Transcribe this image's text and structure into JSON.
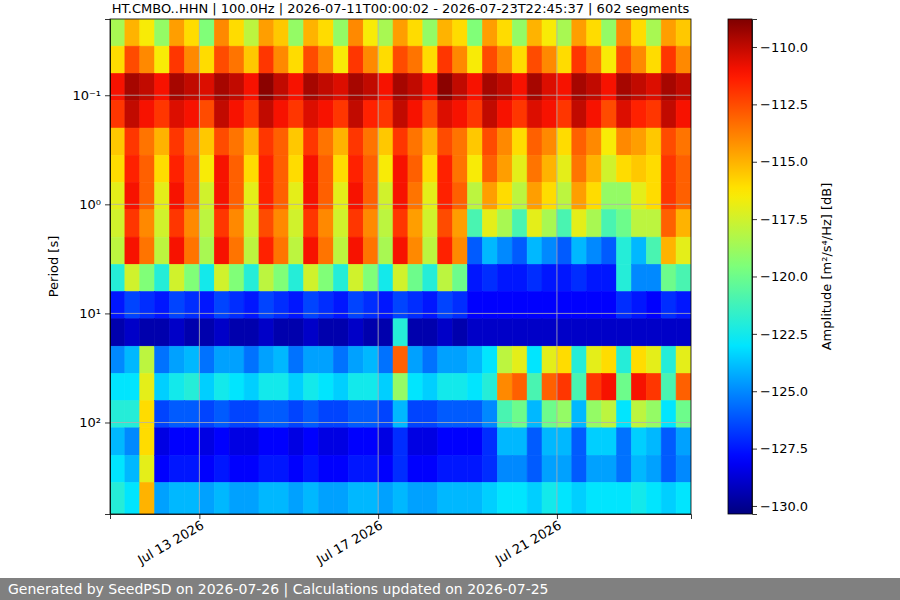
{
  "chart_data": {
    "type": "heatmap",
    "title": "HT.CMBO..HHN | 100.0Hz | 2026-07-11T00:00:02 - 2026-07-23T22:45:37 | 602 segments",
    "ylabel": "Period [s]",
    "footer": "Generated by SeedPSD on 2026-07-26 | Calculations updated on 2026-07-25",
    "log": "y",
    "grid": true,
    "xlim": [
      "2026-07-11T00:00",
      "2026-07-24T00:00"
    ],
    "xticks": [
      {
        "value": "2026-07-13T00:00",
        "label": "Jul 13 2026"
      },
      {
        "value": "2026-07-17T00:00",
        "label": "Jul 17 2026"
      },
      {
        "value": "2026-07-21T00:00",
        "label": "Jul 21 2026"
      }
    ],
    "ylim": [
      0.02,
      690
    ],
    "yticks": [
      {
        "value": 0.1,
        "label": "10⁻¹"
      },
      {
        "value": 1,
        "label": "10⁰"
      },
      {
        "value": 10,
        "label": "10¹"
      },
      {
        "value": 100,
        "label": "10²"
      }
    ],
    "x_bins": [
      "2026-07-11T00:00",
      "2026-07-11T08:00",
      "2026-07-11T16:00",
      "2026-07-12T00:00",
      "2026-07-12T08:00",
      "2026-07-12T16:00",
      "2026-07-13T00:00",
      "2026-07-13T08:00",
      "2026-07-13T16:00",
      "2026-07-14T00:00",
      "2026-07-14T08:00",
      "2026-07-14T16:00",
      "2026-07-15T00:00",
      "2026-07-15T08:00",
      "2026-07-15T16:00",
      "2026-07-16T00:00",
      "2026-07-16T08:00",
      "2026-07-16T16:00",
      "2026-07-17T00:00",
      "2026-07-17T08:00",
      "2026-07-17T16:00",
      "2026-07-18T00:00",
      "2026-07-18T08:00",
      "2026-07-18T16:00",
      "2026-07-19T00:00",
      "2026-07-19T08:00",
      "2026-07-19T16:00",
      "2026-07-20T00:00",
      "2026-07-20T08:00",
      "2026-07-20T16:00",
      "2026-07-21T00:00",
      "2026-07-21T08:00",
      "2026-07-21T16:00",
      "2026-07-22T00:00",
      "2026-07-22T08:00",
      "2026-07-22T16:00",
      "2026-07-23T00:00",
      "2026-07-23T08:00",
      "2026-07-23T16:00",
      "2026-07-24T00:00"
    ],
    "y_bins": [
      0.02,
      0.0355,
      0.0631,
      0.112,
      0.2,
      0.355,
      0.631,
      1.12,
      2,
      3.55,
      6.31,
      11.2,
      20,
      35.5,
      63.1,
      112,
      200,
      355,
      690
    ],
    "values": [
      [
        -118.5,
        -115,
        -116.5,
        -119,
        -114.5,
        -116,
        -119.5,
        -114,
        -116,
        -118,
        -114.5,
        -115.5,
        -119,
        -115,
        -116,
        -119,
        -114,
        -116.5,
        -118.5,
        -114.5,
        -116,
        -119,
        -115,
        -116,
        -119.5,
        -114.5,
        -116,
        -119,
        -115,
        -116.5,
        -118.5,
        -114.5,
        -116,
        -119,
        -114,
        -116,
        -118.5,
        -114.5,
        -115.5
      ],
      [
        -116,
        -112.5,
        -114,
        -116.5,
        -112,
        -114,
        -116,
        -112.5,
        -113.5,
        -115.5,
        -112,
        -114,
        -116,
        -112.5,
        -114,
        -116.5,
        -112,
        -114,
        -116,
        -112.5,
        -113.5,
        -116,
        -112,
        -114,
        -116.5,
        -112.5,
        -114,
        -116,
        -112.5,
        -114,
        -116,
        -112,
        -113.5,
        -116.5,
        -112.5,
        -114,
        -116,
        -112,
        -114
      ],
      [
        -111,
        -109.5,
        -110,
        -111,
        -109.5,
        -110,
        -110.5,
        -109.5,
        -110,
        -111,
        -109,
        -110,
        -111,
        -109.5,
        -110,
        -110.5,
        -109.5,
        -110,
        -111,
        -109.5,
        -110,
        -111,
        -109,
        -110,
        -111,
        -109.5,
        -110,
        -111,
        -109.5,
        -110.5,
        -111,
        -109.5,
        -110,
        -111,
        -109.5,
        -110,
        -110.5,
        -109.5,
        -110
      ],
      [
        -112,
        -110,
        -111,
        -112,
        -110.5,
        -111,
        -112.5,
        -110,
        -111,
        -112,
        -110,
        -111,
        -112,
        -110.5,
        -111,
        -112,
        -110,
        -111.5,
        -112,
        -110,
        -111,
        -112.5,
        -110.5,
        -111,
        -112,
        -110,
        -111,
        -112,
        -110.5,
        -111,
        -112,
        -110,
        -111,
        -112.5,
        -110.5,
        -111.5,
        -112,
        -110,
        -111
      ],
      [
        -115.5,
        -112,
        -113.5,
        -115,
        -112,
        -113.5,
        -115.5,
        -112.5,
        -113.5,
        -115,
        -112,
        -113,
        -115.5,
        -112,
        -113.5,
        -115,
        -112,
        -113.5,
        -115.5,
        -112,
        -113.5,
        -115,
        -112.5,
        -113.5,
        -115.5,
        -112.5,
        -114,
        -116,
        -113,
        -114,
        -116,
        -113,
        -114,
        -116.5,
        -114,
        -114.5,
        -115.5,
        -112.5,
        -113.5
      ],
      [
        -116,
        -111.5,
        -113,
        -116,
        -111.5,
        -113,
        -116.5,
        -111,
        -113,
        -116,
        -111.5,
        -113,
        -116,
        -111,
        -113,
        -116,
        -111.5,
        -113,
        -116.5,
        -111,
        -113,
        -116,
        -111.5,
        -113.5,
        -116.5,
        -113,
        -114.5,
        -117,
        -113.5,
        -115,
        -117,
        -113.5,
        -115,
        -117.5,
        -116,
        -115.5,
        -116,
        -112,
        -113
      ],
      [
        -117,
        -111,
        -113,
        -117,
        -111,
        -113,
        -117.5,
        -111,
        -113,
        -117,
        -111.5,
        -113,
        -117,
        -111,
        -113,
        -117,
        -111,
        -113,
        -117.5,
        -111,
        -113.5,
        -117,
        -111.5,
        -113,
        -118,
        -114.5,
        -116,
        -118,
        -114.5,
        -116,
        -118,
        -114.5,
        -116,
        -119,
        -119,
        -117,
        -116,
        -112,
        -113
      ],
      [
        -117.5,
        -112,
        -114,
        -117.5,
        -112,
        -114,
        -118,
        -112,
        -114,
        -117.5,
        -112.5,
        -114,
        -117.5,
        -112,
        -114,
        -117.5,
        -112,
        -114,
        -118,
        -112,
        -114.5,
        -117.5,
        -112.5,
        -114.5,
        -121,
        -117,
        -118.5,
        -121,
        -117,
        -118.5,
        -121,
        -117,
        -118.5,
        -121,
        -120,
        -118,
        -118,
        -113,
        -115
      ],
      [
        -118,
        -111,
        -113.5,
        -118,
        -111,
        -113.5,
        -118.5,
        -111,
        -113.5,
        -118,
        -111.5,
        -113.5,
        -118,
        -111,
        -113.5,
        -118,
        -111,
        -113.5,
        -118.5,
        -111,
        -114,
        -118,
        -111.5,
        -114,
        -126,
        -124,
        -125,
        -126,
        -124,
        -125,
        -126,
        -124,
        -125,
        -126,
        -122,
        -124,
        -121,
        -115,
        -117
      ],
      [
        -122,
        -117.5,
        -119.5,
        -122,
        -117.5,
        -119.5,
        -122.5,
        -117.5,
        -119.5,
        -122,
        -118,
        -119.5,
        -122,
        -117.5,
        -119.5,
        -122,
        -117.5,
        -119.5,
        -122.5,
        -117.5,
        -120,
        -122,
        -118,
        -120,
        -127.5,
        -127,
        -127.5,
        -127.5,
        -127,
        -127.5,
        -127.5,
        -127,
        -127.5,
        -127.5,
        -122,
        -125,
        -125,
        -120,
        -121
      ],
      [
        -127.5,
        -126.5,
        -127,
        -127.5,
        -126.5,
        -127,
        -127.5,
        -126.5,
        -127,
        -127.5,
        -126.5,
        -127,
        -127.5,
        -126.5,
        -127,
        -127.5,
        -126.5,
        -127,
        -127.5,
        -126.5,
        -127,
        -127.5,
        -126.5,
        -127,
        -128,
        -128,
        -128,
        -128,
        -128,
        -128,
        -128,
        -128,
        -128,
        -128,
        -127,
        -127.5,
        -128,
        -127,
        -127.5
      ],
      [
        -129.5,
        -129,
        -129.5,
        -129.5,
        -129,
        -129.5,
        -129.5,
        -129,
        -129.5,
        -129.5,
        -129,
        -129.5,
        -129.5,
        -129,
        -129.5,
        -129.5,
        -129,
        -129.5,
        -129.5,
        -122,
        -129.5,
        -129.5,
        -129,
        -129.5,
        -129,
        -129,
        -129,
        -129,
        -129,
        -129,
        -129,
        -129,
        -129,
        -129,
        -129,
        -129,
        -129,
        -129,
        -129
      ],
      [
        -125,
        -124,
        -118,
        -125.5,
        -124.5,
        -124,
        -125.5,
        -124.5,
        -124.5,
        -125.5,
        -124.5,
        -124,
        -125.5,
        -124.5,
        -124.5,
        -125.5,
        -124.5,
        -124,
        -125.5,
        -113,
        -124.5,
        -125.5,
        -124.5,
        -124.5,
        -124,
        -123,
        -118,
        -117,
        -123,
        -117,
        -116,
        -122,
        -117,
        -116,
        -122,
        -116,
        -117,
        -122,
        -117
      ],
      [
        -123,
        -123,
        -117,
        -123.5,
        -122.5,
        -122,
        -123.5,
        -122.5,
        -123,
        -123.5,
        -122.5,
        -122.5,
        -123.5,
        -122.5,
        -123,
        -123.5,
        -122.5,
        -122.5,
        -123.5,
        -119,
        -123,
        -123.5,
        -122.5,
        -122.5,
        -123,
        -122,
        -114,
        -113,
        -121,
        -113,
        -112,
        -121,
        -112,
        -111,
        -120,
        -111,
        -112,
        -121,
        -113
      ],
      [
        -122,
        -122,
        -116,
        -126.5,
        -126,
        -126,
        -126.5,
        -126,
        -126.5,
        -126.5,
        -126,
        -126,
        -126.5,
        -126,
        -126.5,
        -126.5,
        -126,
        -126,
        -126.5,
        -124,
        -126.5,
        -126.5,
        -126,
        -126,
        -126,
        -125,
        -121,
        -120,
        -124,
        -120,
        -119,
        -124,
        -119,
        -118,
        -123,
        -118,
        -119,
        -123,
        -120
      ],
      [
        -124,
        -125,
        -116,
        -128.5,
        -128,
        -128,
        -128.5,
        -128,
        -128.5,
        -128.5,
        -128,
        -128,
        -128.5,
        -128,
        -128.5,
        -128.5,
        -128,
        -128,
        -128.5,
        -127,
        -128.5,
        -128.5,
        -128,
        -128,
        -128,
        -127,
        -124,
        -124,
        -126,
        -124,
        -124,
        -126,
        -123.5,
        -123.5,
        -125.5,
        -123.5,
        -124,
        -126,
        -124.5
      ],
      [
        -123,
        -124,
        -117,
        -128,
        -127.5,
        -127.5,
        -128,
        -127.5,
        -128,
        -128,
        -127.5,
        -127.5,
        -128,
        -127.5,
        -128,
        -128,
        -127.5,
        -127.5,
        -128,
        -127,
        -128,
        -128,
        -127.5,
        -127.5,
        -127.5,
        -127,
        -125,
        -125,
        -126,
        -124.5,
        -124.5,
        -126,
        -124.5,
        -124.5,
        -125.5,
        -124,
        -124.5,
        -126,
        -125
      ],
      [
        -122,
        -123,
        -115,
        -124.5,
        -124,
        -124,
        -124.5,
        -124,
        -124.5,
        -124.5,
        -124,
        -124,
        -124.5,
        -124,
        -124.5,
        -124.5,
        -124,
        -124,
        -124.5,
        -124,
        -124.5,
        -124.5,
        -124,
        -124,
        -124,
        -123.5,
        -123,
        -123,
        -123.5,
        -122.5,
        -123,
        -123.5,
        -123,
        -123,
        -123,
        -122.5,
        -123,
        -123.5,
        -123
      ]
    ],
    "colorbar": {
      "label": "Amplitude [m²/s⁴/Hz] [dB]",
      "range": [
        -130.35,
        -108.78
      ],
      "ticks": [
        {
          "value": -110,
          "label": "−110.0"
        },
        {
          "value": -112.5,
          "label": "−112.5"
        },
        {
          "value": -115,
          "label": "−115.0"
        },
        {
          "value": -117.5,
          "label": "−117.5"
        },
        {
          "value": -120,
          "label": "−120.0"
        },
        {
          "value": -122.5,
          "label": "−122.5"
        },
        {
          "value": -125,
          "label": "−125.0"
        },
        {
          "value": -127.5,
          "label": "−127.5"
        },
        {
          "value": -130,
          "label": "−130.0"
        }
      ]
    }
  }
}
